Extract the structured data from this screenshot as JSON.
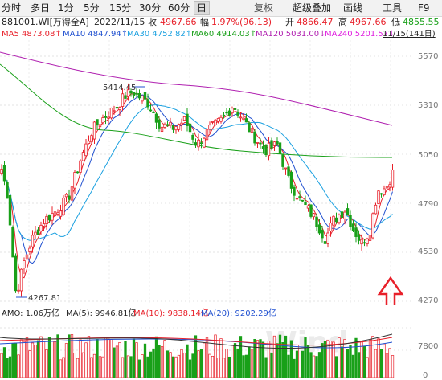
{
  "toolbar": {
    "items": [
      "分时",
      "多日",
      "1分",
      "5分",
      "15分",
      "30分",
      "60分",
      "日",
      "复权",
      "超级叠加",
      "画线",
      "工具",
      "F9"
    ],
    "active": "日"
  },
  "header": {
    "code": "881001.WI[万得全A]",
    "date": "2022/11/15",
    "close_label": "收",
    "close_value": "4967.66",
    "change_label": "幅",
    "change_value": "1.97%(96.13)",
    "open_label": "开",
    "open_value": "4866.47",
    "high_label": "高",
    "high_value": "4967.66",
    "low_label": "低",
    "low_value": "4855.55"
  },
  "ma": {
    "ma5": "MA5 4873.08↑",
    "ma10": "MA10 4847.94↑",
    "ma30": "MA30 4752.82↑",
    "ma60": "MA60 4914.03↑",
    "ma120": "MA120 5031.00↓",
    "ma240": "MA240 5201.57↓",
    "date_range": "11/15(141日)"
  },
  "price_axis": [
    "5570",
    "5310",
    "5050",
    "4790",
    "4530",
    "4270"
  ],
  "annotations": {
    "high_mark": "5414.45",
    "low_mark": "4267.81"
  },
  "volume": {
    "amo": "AMO: 1.06万亿",
    "ma5": "MA(5): 9946.81亿",
    "ma10": "MA(10): 9838.14亿",
    "ma20": "MA(20): 9202.29亿",
    "axis": [
      "7800",
      "0"
    ],
    "watermark": "Wind"
  },
  "colors": {
    "up": "#e8202a",
    "down": "#19a019",
    "ma5": "#e8202a",
    "ma10": "#2050d0",
    "ma30": "#1aa0e0",
    "ma60": "#1aa01a",
    "ma120": "#b020b0",
    "ma240": "#e020e0",
    "arrow": "#e8202a"
  }
}
